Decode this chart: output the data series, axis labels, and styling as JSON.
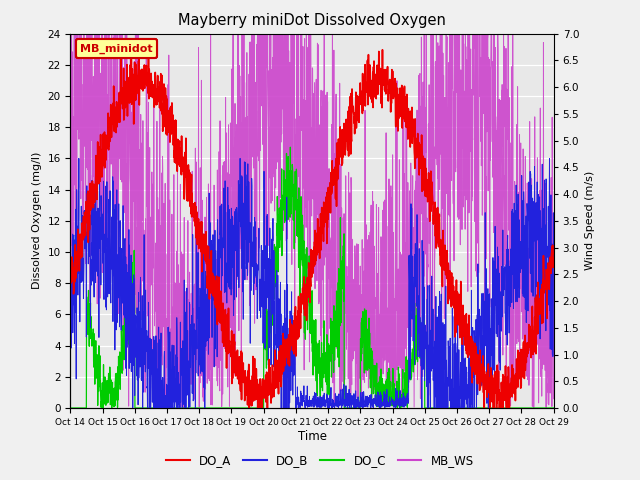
{
  "title": "Mayberry miniDot Dissolved Oxygen",
  "xlabel": "Time",
  "ylabel_left": "Dissolved Oxygen (mg/l)",
  "ylabel_right": "Wind Speed (m/s)",
  "ylim_left": [
    0,
    24
  ],
  "ylim_right": [
    0.0,
    7.0
  ],
  "yticks_left": [
    0,
    2,
    4,
    6,
    8,
    10,
    12,
    14,
    16,
    18,
    20,
    22,
    24
  ],
  "yticks_right": [
    0.0,
    0.5,
    1.0,
    1.5,
    2.0,
    2.5,
    3.0,
    3.5,
    4.0,
    4.5,
    5.0,
    5.5,
    6.0,
    6.5,
    7.0
  ],
  "xtick_labels": [
    "Oct 14",
    "Oct 15",
    "Oct 16",
    "Oct 17",
    "Oct 18",
    "Oct 19",
    "Oct 20",
    "Oct 21",
    "Oct 22",
    "Oct 23",
    "Oct 24",
    "Oct 25",
    "Oct 26",
    "Oct 27",
    "Oct 28",
    "Oct 29"
  ],
  "legend_label": "MB_minidot",
  "line_colors": {
    "DO_A": "#ee0000",
    "DO_B": "#2222dd",
    "DO_C": "#00cc00",
    "MB_WS": "#cc44cc"
  },
  "plot_bg_color": "#e8e8e8",
  "fig_bg_color": "#f0f0f0",
  "grid_color": "#ffffff",
  "n_points": 2000,
  "seed": 42
}
